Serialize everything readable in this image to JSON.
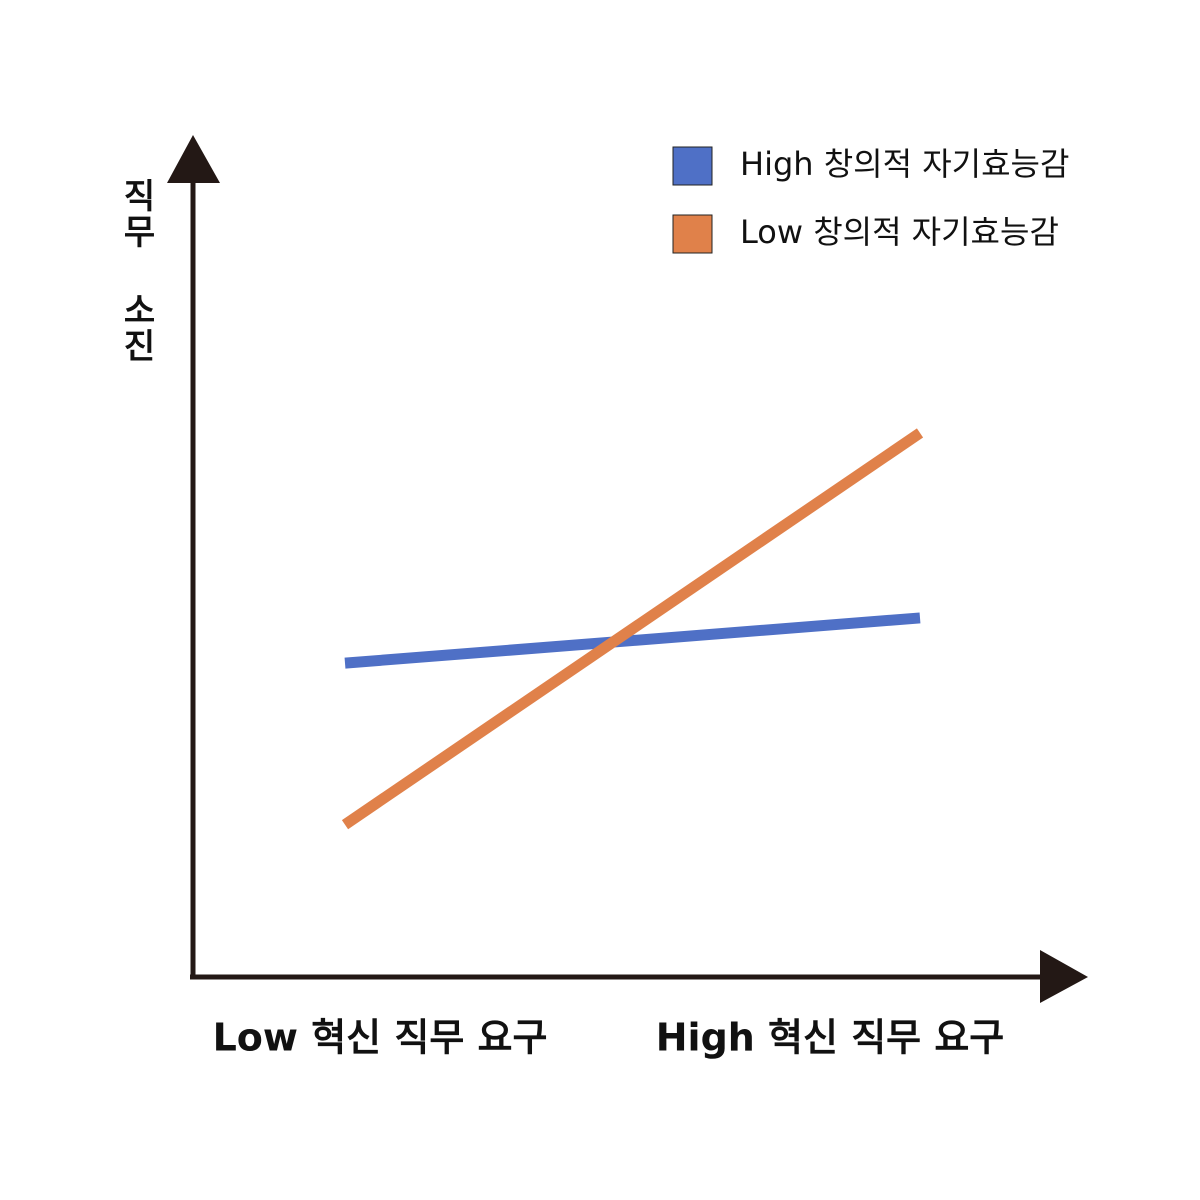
{
  "chart_data": {
    "type": "line",
    "ylabel": "직무 소진",
    "categories": [
      "Low 혁신 직무 요구",
      "High 혁신 직무 요구"
    ],
    "series": [
      {
        "name": "High 창의적 자기효능감",
        "color": "#4f70c6",
        "values": [
          37.5,
          42.9
        ]
      },
      {
        "name": "Low 창의적 자기효능감",
        "color": "#e0814a",
        "values": [
          18.2,
          65.0
        ]
      }
    ],
    "ylim": [
      0,
      100
    ],
    "legend": "upper right"
  }
}
